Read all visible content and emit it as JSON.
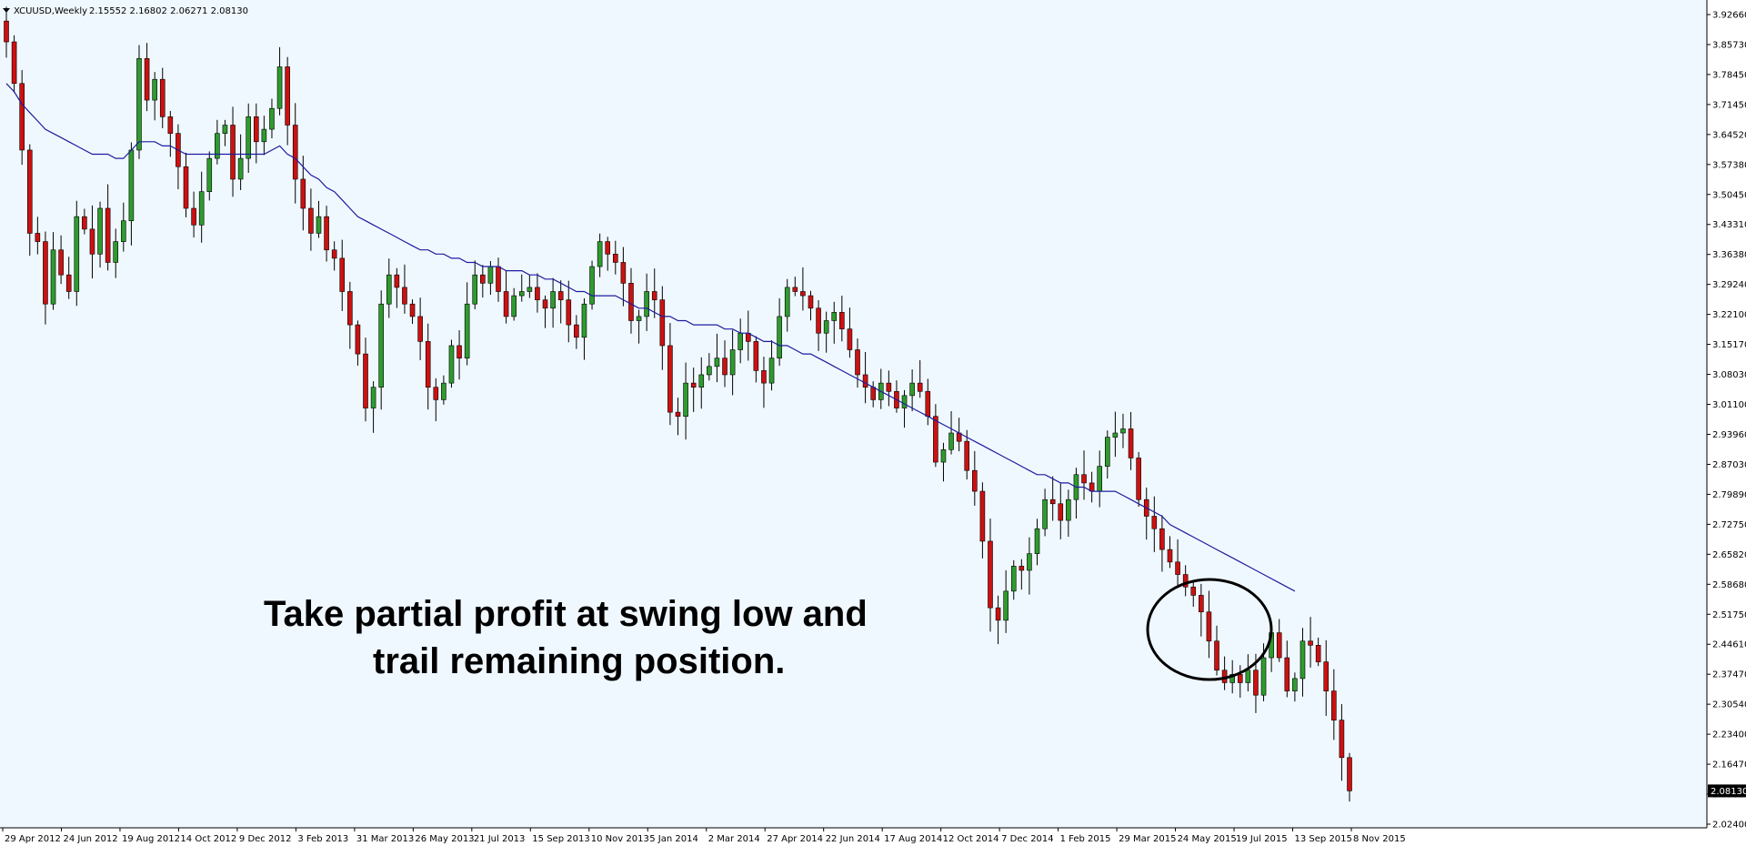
{
  "header": {
    "symbol": "XCUUSD,Weekly",
    "ohlc": "2.15552 2.16802 2.06271 2.08130"
  },
  "annotation": {
    "line1": "Take partial profit at swing low and",
    "line2": "trail remaining position."
  },
  "price_marker": "2.08130",
  "colors": {
    "background": "#f0f8ff",
    "bull": "#2e9b2e",
    "bear": "#cc1111",
    "wick": "#000000",
    "moving_average": "#1c1c9e",
    "axis": "#000000"
  },
  "chart_data": {
    "type": "candlestick",
    "title": "",
    "y_range": [
      2.0,
      3.95
    ],
    "grid": false,
    "y_ticks": [
      "3.92660",
      "3.85730",
      "3.78450",
      "3.71450",
      "3.64520",
      "3.57380",
      "3.50450",
      "3.43310",
      "3.36380",
      "3.29240",
      "3.22100",
      "3.15170",
      "3.08030",
      "3.01100",
      "2.93960",
      "2.87030",
      "2.79890",
      "2.72750",
      "2.65820",
      "2.58680",
      "2.51750",
      "2.44610",
      "2.37470",
      "2.30540",
      "2.23400",
      "2.16470",
      "2.09330",
      "2.02400"
    ],
    "x_ticks": [
      "29 Apr 2012",
      "24 Jun 2012",
      "19 Aug 2012",
      "14 Oct 2012",
      "9 Dec 2012",
      "3 Feb 2013",
      "31 Mar 2013",
      "26 May 2013",
      "21 Jul 2013",
      "15 Sep 2013",
      "10 Nov 2013",
      "5 Jan 2014",
      "2 Mar 2014",
      "27 Apr 2014",
      "22 Jun 2014",
      "17 Aug 2014",
      "12 Oct 2014",
      "7 Dec 2014",
      "1 Feb 2015",
      "29 Mar 2015",
      "24 May 2015",
      "19 Jul 2015",
      "13 Sep 2015",
      "8 Nov 2015"
    ],
    "closes": [
      3.88,
      3.78,
      3.62,
      3.42,
      3.4,
      3.25,
      3.38,
      3.32,
      3.28,
      3.46,
      3.43,
      3.37,
      3.48,
      3.35,
      3.4,
      3.45,
      3.62,
      3.84,
      3.74,
      3.79,
      3.7,
      3.66,
      3.58,
      3.48,
      3.44,
      3.52,
      3.6,
      3.66,
      3.68,
      3.55,
      3.6,
      3.7,
      3.64,
      3.67,
      3.72,
      3.82,
      3.68,
      3.55,
      3.48,
      3.42,
      3.46,
      3.38,
      3.36,
      3.28,
      3.2,
      3.13,
      3.0,
      3.05,
      3.25,
      3.32,
      3.29,
      3.25,
      3.22,
      3.16,
      3.05,
      3.02,
      3.06,
      3.15,
      3.12,
      3.25,
      3.32,
      3.3,
      3.34,
      3.28,
      3.22,
      3.27,
      3.28,
      3.29,
      3.26,
      3.24,
      3.28,
      3.26,
      3.2,
      3.17,
      3.25,
      3.34,
      3.4,
      3.37,
      3.35,
      3.3,
      3.21,
      3.22,
      3.28,
      3.26,
      3.15,
      2.99,
      2.98,
      3.06,
      3.05,
      3.08,
      3.1,
      3.12,
      3.08,
      3.14,
      3.18,
      3.16,
      3.09,
      3.06,
      3.12,
      3.22,
      3.29,
      3.28,
      3.27,
      3.24,
      3.18,
      3.21,
      3.23,
      3.19,
      3.14,
      3.08,
      3.05,
      3.02,
      3.06,
      3.04,
      3.0,
      3.03,
      3.06,
      3.04,
      2.98,
      2.87,
      2.9,
      2.94,
      2.92,
      2.85,
      2.8,
      2.68,
      2.52,
      2.49,
      2.56,
      2.62,
      2.61,
      2.65,
      2.71,
      2.78,
      2.77,
      2.73,
      2.78,
      2.84,
      2.82,
      2.8,
      2.86,
      2.93,
      2.94,
      2.95,
      2.88,
      2.78,
      2.74,
      2.71,
      2.66,
      2.63,
      2.6,
      2.57,
      2.55,
      2.51,
      2.44,
      2.37,
      2.34,
      2.36,
      2.34,
      2.37,
      2.31,
      2.4,
      2.46,
      2.4,
      2.32,
      2.35,
      2.44,
      2.43,
      2.39,
      2.32,
      2.25,
      2.16,
      2.08
    ],
    "series": [
      {
        "name": "",
        "type": "line",
        "values": [
          3.78,
          3.76,
          3.73,
          3.71,
          3.69,
          3.67,
          3.66,
          3.65,
          3.64,
          3.63,
          3.62,
          3.61,
          3.61,
          3.61,
          3.6,
          3.6,
          3.62,
          3.64,
          3.64,
          3.64,
          3.63,
          3.63,
          3.62,
          3.61,
          3.61,
          3.61,
          3.61,
          3.61,
          3.61,
          3.61,
          3.61,
          3.61,
          3.61,
          3.61,
          3.62,
          3.63,
          3.61,
          3.6,
          3.58,
          3.56,
          3.55,
          3.53,
          3.52,
          3.5,
          3.48,
          3.46,
          3.45,
          3.44,
          3.43,
          3.42,
          3.41,
          3.4,
          3.39,
          3.38,
          3.38,
          3.37,
          3.37,
          3.36,
          3.36,
          3.35,
          3.35,
          3.34,
          3.34,
          3.34,
          3.33,
          3.33,
          3.33,
          3.32,
          3.32,
          3.31,
          3.31,
          3.3,
          3.29,
          3.28,
          3.28,
          3.27,
          3.27,
          3.27,
          3.27,
          3.26,
          3.25,
          3.24,
          3.24,
          3.23,
          3.22,
          3.22,
          3.21,
          3.21,
          3.2,
          3.2,
          3.2,
          3.2,
          3.19,
          3.19,
          3.18,
          3.18,
          3.17,
          3.16,
          3.16,
          3.15,
          3.15,
          3.14,
          3.13,
          3.13,
          3.12,
          3.11,
          3.1,
          3.09,
          3.08,
          3.07,
          3.06,
          3.05,
          3.04,
          3.03,
          3.02,
          3.01,
          3.0,
          2.99,
          2.98,
          2.97,
          2.96,
          2.95,
          2.94,
          2.93,
          2.92,
          2.91,
          2.9,
          2.89,
          2.88,
          2.87,
          2.86,
          2.85,
          2.84,
          2.84,
          2.83,
          2.82,
          2.82,
          2.81,
          2.81,
          2.8,
          2.8,
          2.8,
          2.8,
          2.79,
          2.78,
          2.77,
          2.76,
          2.75,
          2.74,
          2.72,
          2.71,
          2.7,
          2.69,
          2.68,
          2.67,
          2.66,
          2.65,
          2.64,
          2.63,
          2.62,
          2.61,
          2.6,
          2.59,
          2.58,
          2.57,
          2.56
        ]
      }
    ]
  }
}
